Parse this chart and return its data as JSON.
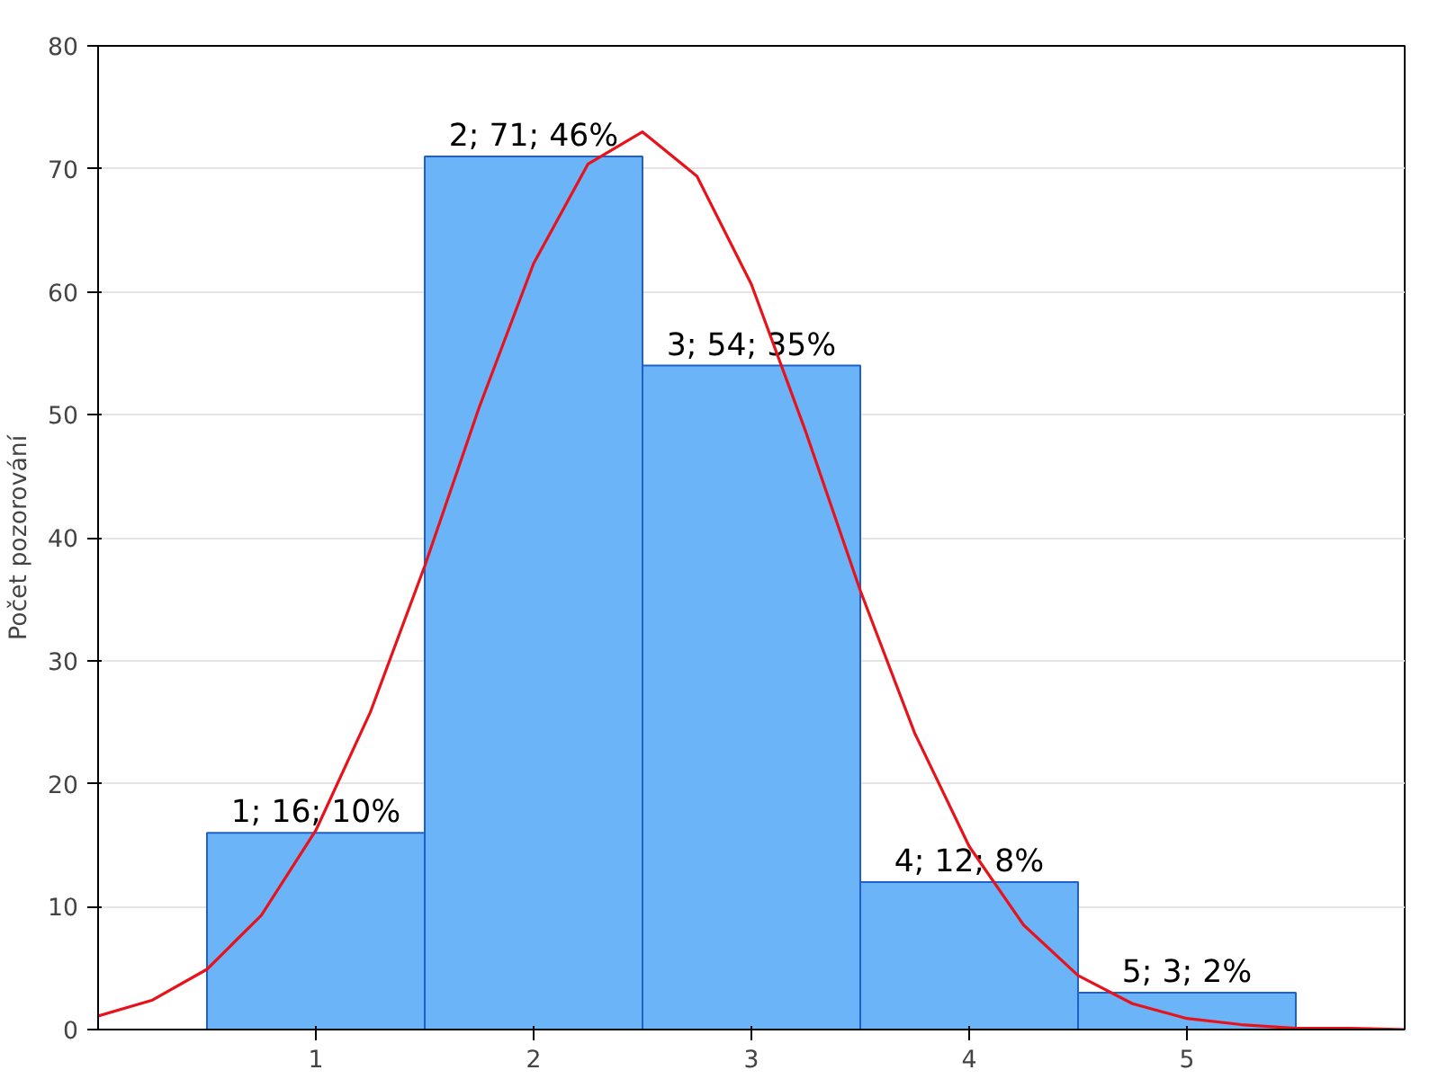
{
  "chart_data": {
    "type": "histogram",
    "ylabel": "Počet pozorování",
    "bins": [
      0.5,
      1.5,
      2.5,
      3.5,
      4.5,
      5.5
    ],
    "values": [
      16,
      71,
      54,
      12,
      3
    ],
    "value_labels": [
      "1; 16; 10%",
      "2; 71; 46%",
      "3; 54; 35%",
      "4; 12; 8%",
      "5; 3; 2%"
    ],
    "color": "#6cb4f8",
    "series": [
      {
        "type": "line",
        "color": "#e8121b",
        "x": [
          0,
          0.25,
          0.5,
          0.75,
          1,
          1.25,
          1.5,
          1.75,
          2,
          2.25,
          2.5,
          2.75,
          3,
          3.25,
          3.5,
          3.75,
          4,
          4.25,
          4.5,
          4.75,
          5,
          5.25,
          5.5,
          5.75,
          6
        ],
        "values": [
          1.1,
          2.4,
          4.9,
          9.3,
          16.2,
          25.8,
          37.7,
          50.6,
          62.3,
          70.4,
          73,
          69.4,
          60.6,
          48.6,
          35.7,
          24.1,
          14.9,
          8.5,
          4.4,
          2.1,
          0.9,
          0.4,
          0.1,
          0.1,
          0
        ]
      }
    ],
    "xlim": [
      0,
      6
    ],
    "xticks": [
      1,
      2,
      3,
      4,
      5
    ],
    "ylim": [
      0,
      80
    ],
    "yticks": [
      0,
      10,
      20,
      30,
      40,
      50,
      60,
      70,
      80
    ],
    "grid": "y"
  }
}
